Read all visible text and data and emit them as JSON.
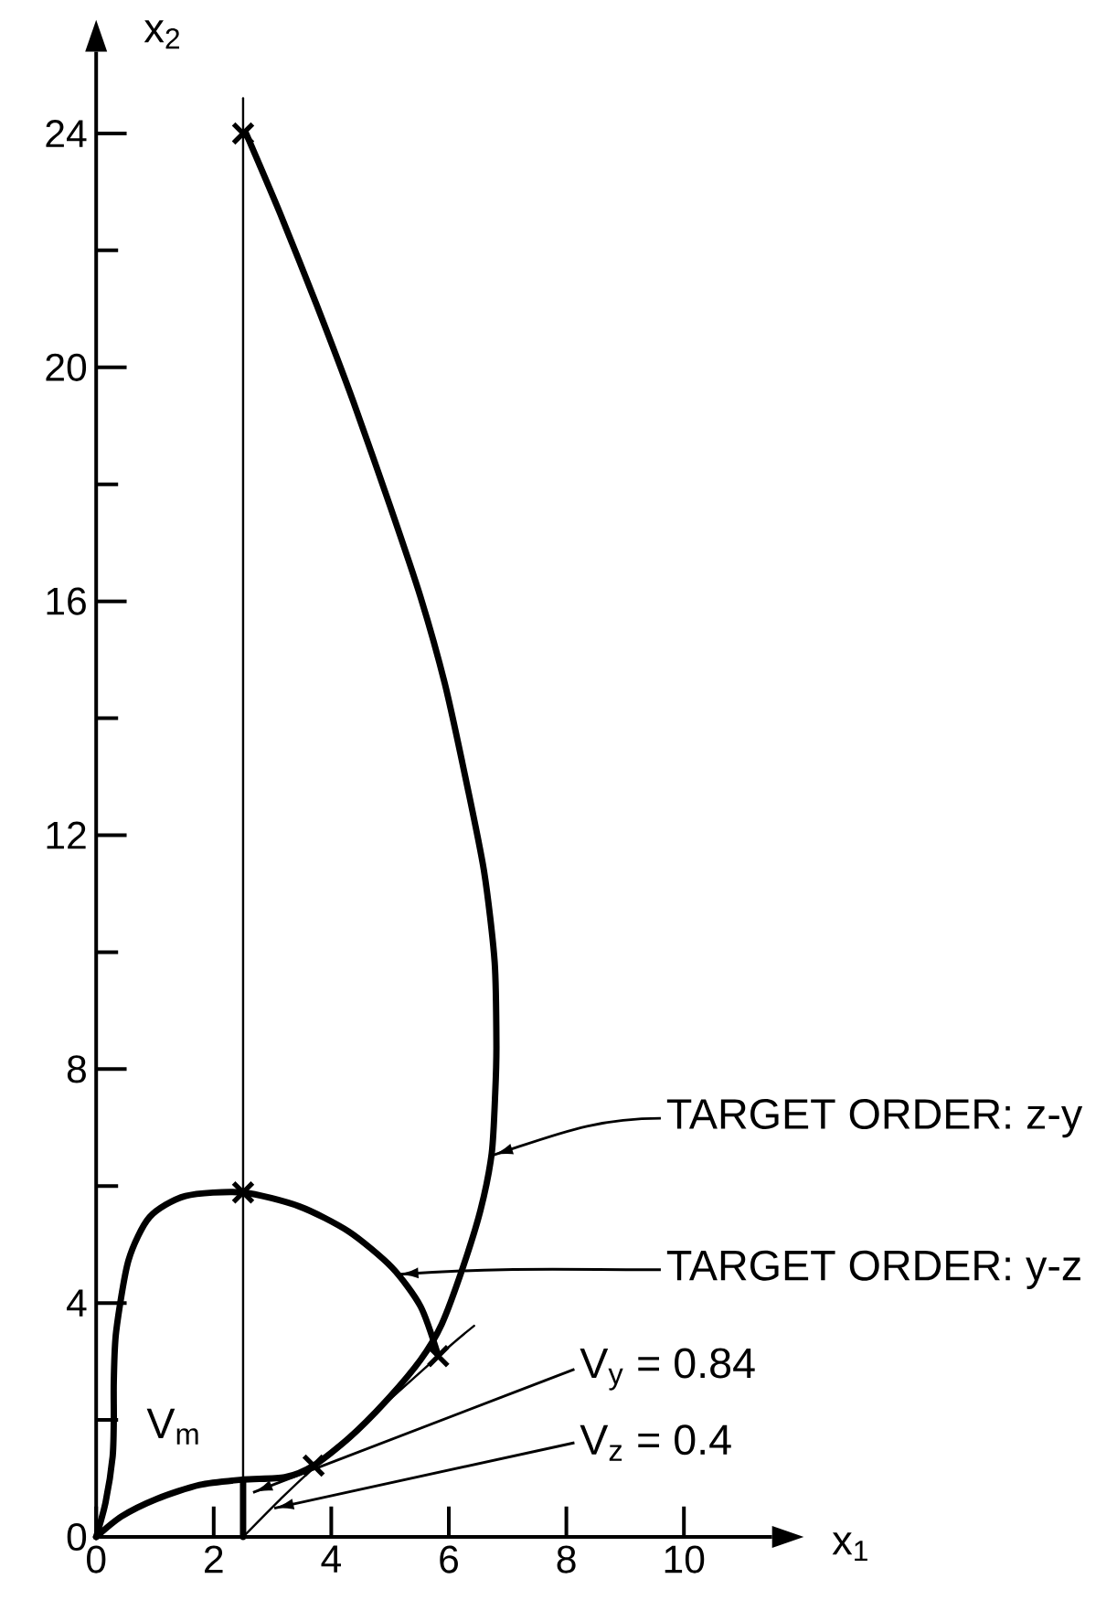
{
  "chart_data": {
    "type": "line",
    "xlabel": "x$_{1}$",
    "ylabel": "x$_{2}$",
    "xlim": [
      0,
      11.5
    ],
    "ylim": [
      0,
      25.4
    ],
    "xticks": [
      0,
      2,
      4,
      6,
      8,
      10
    ],
    "yticks": [
      0,
      {
        "value": 2,
        "label": null
      },
      4,
      {
        "value": 6,
        "label": null
      },
      8,
      {
        "value": 10,
        "label": null
      },
      12,
      {
        "value": 14,
        "label": null
      },
      16,
      {
        "value": 18,
        "label": null
      },
      20,
      {
        "value": 22,
        "label": null
      },
      24
    ],
    "series": [
      {
        "color": "#000000",
        "x": [
          0,
          0.43,
          1.03,
          1.76,
          2.49,
          3.21,
          3.7,
          4.3,
          4.91,
          5.52,
          5.88,
          6.24,
          6.54,
          6.73,
          6.79,
          6.81,
          6.78,
          6.6,
          6.28,
          5.93,
          5.52,
          5.0,
          4.38,
          3.75,
          3.13,
          2.55
        ],
        "values": [
          0,
          0.35,
          0.65,
          0.89,
          0.98,
          1.02,
          1.22,
          1.69,
          2.3,
          3.03,
          3.64,
          4.61,
          5.59,
          6.56,
          7.6,
          8.4,
          9.83,
          11.38,
          13.0,
          14.6,
          16.07,
          17.63,
          19.4,
          21.07,
          22.63,
          24
        ]
      },
      {
        "color": "#000000",
        "x": [
          0,
          0.16,
          0.28,
          0.3,
          0.3,
          0.34,
          0.55,
          0.91,
          1.52,
          2.49,
          3.46,
          4.3,
          5.03,
          5.52,
          5.82
        ],
        "values": [
          0,
          0.59,
          1.37,
          2.0,
          2.66,
          3.51,
          4.73,
          5.47,
          5.83,
          5.89,
          5.65,
          5.22,
          4.61,
          3.94,
          3.1
        ]
      },
      {
        "color": "#000000",
        "x": [
          2.5,
          2.5
        ],
        "values": [
          0,
          24.6
        ]
      },
      {
        "color": "#000000",
        "x": [
          2.5,
          2.5
        ],
        "values": [
          0,
          0.98
        ]
      },
      {
        "color": "#000000",
        "x": [
          2.5,
          3.13,
          3.7,
          5.82,
          6.43
        ],
        "values": [
          0,
          0.64,
          1.18,
          3.09,
          3.61
        ]
      },
      {
        "type": "scatter",
        "marker": "cross",
        "color": "#000000",
        "x": [
          2.5,
          2.5,
          3.7,
          5.82
        ],
        "values": [
          24,
          5.89,
          1.22,
          3.09
        ]
      }
    ],
    "annotations": [
      {
        "text": "TARGET ORDER: z-y",
        "x": 6.76,
        "y": 6.53
      },
      {
        "text": "TARGET ORDER: y-z",
        "x": 5.15,
        "y": 4.49
      },
      "V$_{y}$ = 0.84",
      "V$_{z}$ = 0.4",
      "V$_{m}$"
    ]
  }
}
